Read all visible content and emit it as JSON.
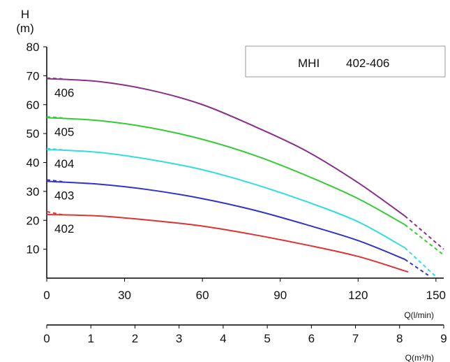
{
  "chart_data": {
    "type": "line",
    "legend_box": {
      "model": "MHI",
      "range": "402-406",
      "placement": "top-right"
    },
    "y_axis": {
      "label_line1": "H",
      "label_line2": "(m)",
      "ylim": [
        0,
        80
      ],
      "ticks": [
        10,
        20,
        30,
        40,
        50,
        60,
        70,
        80
      ]
    },
    "x_axis_primary": {
      "label": "Q(l/min)",
      "xlim": [
        0,
        153
      ],
      "ticks": [
        0,
        30,
        60,
        90,
        120,
        150
      ]
    },
    "x_axis_secondary": {
      "label": "Q(m³/h)",
      "xlim": [
        0,
        9
      ],
      "ticks": [
        0,
        1,
        2,
        3,
        4,
        5,
        6,
        7,
        8,
        9
      ]
    },
    "grid": false,
    "series": [
      {
        "name": "406",
        "color": "#8a2f8a",
        "x": [
          0,
          20,
          40,
          60,
          80,
          100,
          120,
          138
        ],
        "y": [
          69,
          68,
          65,
          60,
          52.5,
          44,
          33,
          21.5
        ],
        "dash_start_y": 69.2,
        "dash_end": [
          153,
          10
        ]
      },
      {
        "name": "405",
        "color": "#33cc33",
        "x": [
          0,
          20,
          40,
          60,
          80,
          100,
          120,
          138
        ],
        "y": [
          55.5,
          54.5,
          52,
          48,
          42.5,
          35.5,
          27.5,
          18.5
        ],
        "dash_start_y": 55.8,
        "dash_end": [
          153,
          8
        ]
      },
      {
        "name": "404",
        "color": "#33dddd",
        "x": [
          0,
          20,
          40,
          60,
          80,
          100,
          120,
          138
        ],
        "y": [
          44.5,
          43.5,
          41,
          37.5,
          32.5,
          26.5,
          19.5,
          10.5
        ],
        "dash_start_y": 44.8,
        "dash_end": [
          150,
          0.5
        ]
      },
      {
        "name": "403",
        "color": "#3333cc",
        "x": [
          0,
          20,
          40,
          60,
          80,
          100,
          120,
          138
        ],
        "y": [
          33.5,
          32.5,
          30.5,
          27.5,
          23.5,
          18.5,
          13,
          6.5
        ],
        "dash_start_y": 34,
        "dash_end": [
          147,
          1
        ]
      },
      {
        "name": "402",
        "color": "#dd3333",
        "x": [
          0,
          20,
          40,
          60,
          80,
          100,
          120,
          138
        ],
        "y": [
          22,
          21.5,
          20,
          18,
          15,
          11.5,
          7.5,
          2.5
        ],
        "dash_start_y": 23,
        "dash_end": [
          140,
          2
        ]
      }
    ]
  }
}
